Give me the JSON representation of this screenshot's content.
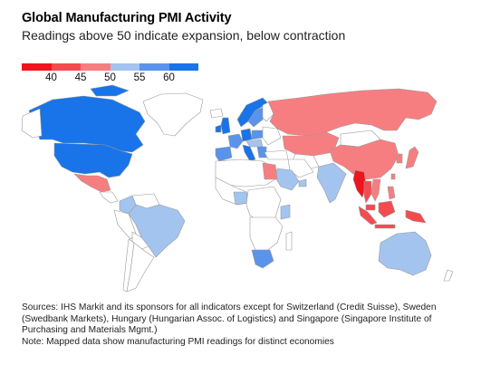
{
  "header": {
    "title": "Global Manufacturing PMI Activity",
    "subtitle": "Readings above 50 indicate expansion, below contraction"
  },
  "legend": {
    "ticks": [
      "40",
      "45",
      "50",
      "55",
      "60"
    ],
    "colors": [
      "#f0141e",
      "#f44b50",
      "#f77e80",
      "#a4c4f0",
      "#5a93ec",
      "#1874e8"
    ]
  },
  "map_colors": {
    "no_data": "#ffffff",
    "border": "#9a9a9a",
    "deep_blue": "#1874e8",
    "mid_blue": "#5a93ec",
    "light_blue": "#a4c4f0",
    "pale_red": "#f77e80",
    "mid_red": "#f44b50",
    "deep_red": "#f0141e"
  },
  "footer": {
    "sources": "Sources: IHS Markit and its sponsors for all indicators except for Switzerland (Credit Suisse), Sweden (Swedbank Markets), Hungary (Hungarian Assoc. of Logistics) and Singapore (Singapore Institute of Purchasing and Materials Mgmt.)",
    "note": "Note: Mapped data show manufacturing PMI readings for distinct economies"
  }
}
